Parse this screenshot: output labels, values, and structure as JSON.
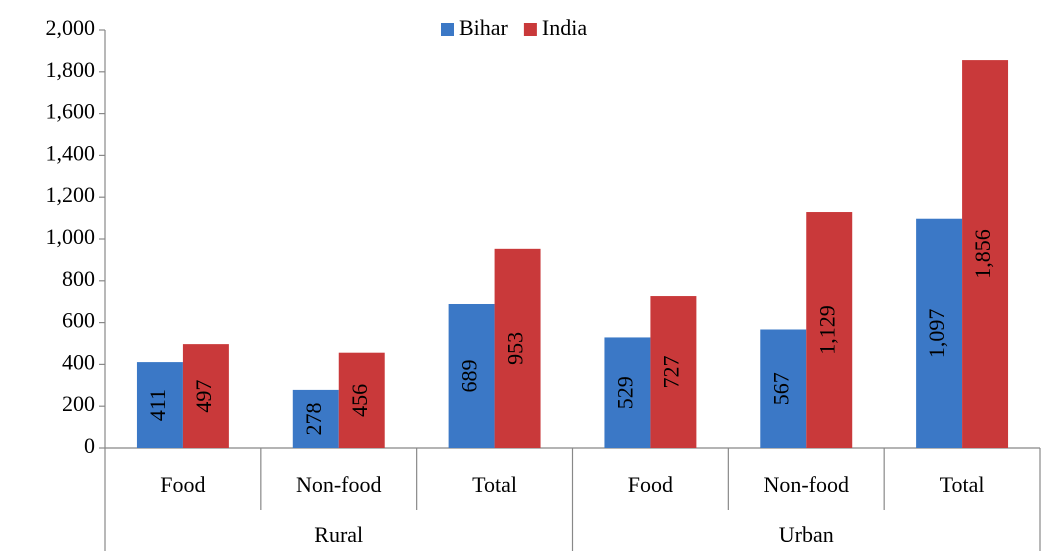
{
  "chart_data": {
    "type": "bar",
    "groups": [
      {
        "label": "Rural",
        "categories": [
          "Food",
          "Non-food",
          "Total"
        ]
      },
      {
        "label": "Urban",
        "categories": [
          "Food",
          "Non-food",
          "Total"
        ]
      }
    ],
    "series": [
      {
        "name": "Bihar",
        "color": "#3b78c6",
        "values": [
          411,
          278,
          689,
          529,
          567,
          1097
        ],
        "value_labels": [
          "411",
          "278",
          "689",
          "529",
          "567",
          "1,097"
        ]
      },
      {
        "name": "India",
        "color": "#c9393a",
        "values": [
          497,
          456,
          953,
          727,
          1129,
          1856
        ],
        "value_labels": [
          "497",
          "456",
          "953",
          "727",
          "1,129",
          "1,856"
        ]
      }
    ],
    "ylim": [
      0,
      2000
    ],
    "yticks": [
      0,
      200,
      400,
      600,
      800,
      {
        "value": 1000,
        "label": "1,000"
      },
      {
        "value": 1200,
        "label": "1,200"
      },
      {
        "value": 1400,
        "label": "1,400"
      },
      {
        "value": 1600,
        "label": "1,600"
      },
      {
        "value": 1800,
        "label": "1,800"
      },
      {
        "value": 2000,
        "label": "2,000"
      }
    ],
    "legend": "top"
  }
}
